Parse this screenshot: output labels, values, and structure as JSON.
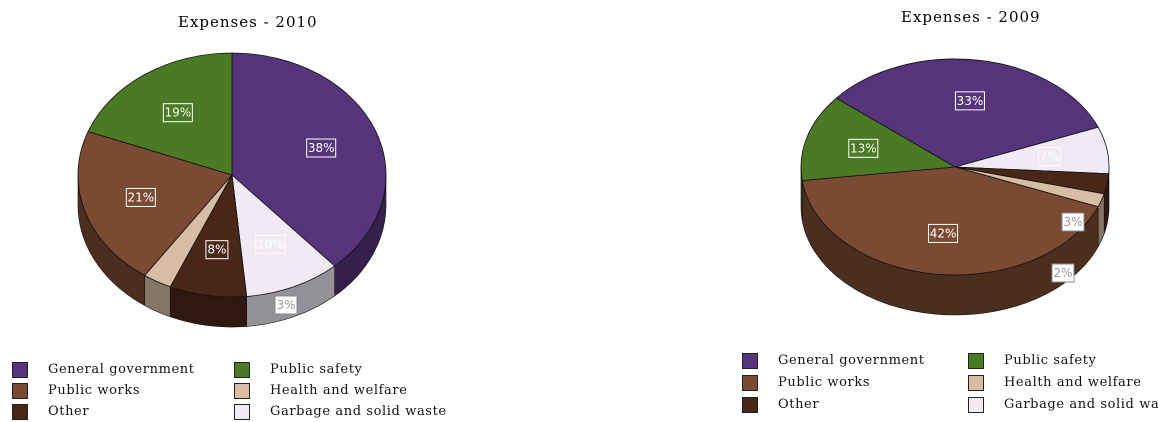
{
  "colors": {
    "General government": "#56347c",
    "Public safety": "#4b7a24",
    "Public works": "#7b4a32",
    "Health and welfare": "#d7bda4",
    "Other": "#4a2618",
    "Garbage and solid waste": "#efeaf3"
  },
  "chart_data": [
    {
      "type": "pie",
      "title": "Expenses - 2010",
      "slices": [
        {
          "label": "General government",
          "value": 38,
          "pct_text": "38%"
        },
        {
          "label": "Garbage and solid waste",
          "value": 10,
          "pct_text": "10%"
        },
        {
          "label": "Other",
          "value": 8,
          "pct_text": "8%"
        },
        {
          "label": "Health and welfare",
          "value": 3,
          "pct_text": "3%"
        },
        {
          "label": "Public works",
          "value": 21,
          "pct_text": "21%"
        },
        {
          "label": "Public safety",
          "value": 19,
          "pct_text": "19%"
        }
      ],
      "legend": [
        "General government",
        "Public safety",
        "Public works",
        "Health and welfare",
        "Other",
        "Garbage and solid waste"
      ]
    },
    {
      "type": "pie",
      "title": "Expenses - 2009",
      "slices": [
        {
          "label": "General government",
          "value": 33,
          "pct_text": "33%"
        },
        {
          "label": "Garbage and solid waste",
          "value": 7,
          "pct_text": "7%"
        },
        {
          "label": "Other",
          "value": 3,
          "pct_text": "3%"
        },
        {
          "label": "Health and welfare",
          "value": 2,
          "pct_text": "2%"
        },
        {
          "label": "Public works",
          "value": 42,
          "pct_text": "42%"
        },
        {
          "label": "Public safety",
          "value": 13,
          "pct_text": "13%"
        }
      ],
      "legend": [
        "General government",
        "Public safety",
        "Public works",
        "Health and welfare",
        "Other",
        "Garbage and solid waste"
      ]
    }
  ]
}
